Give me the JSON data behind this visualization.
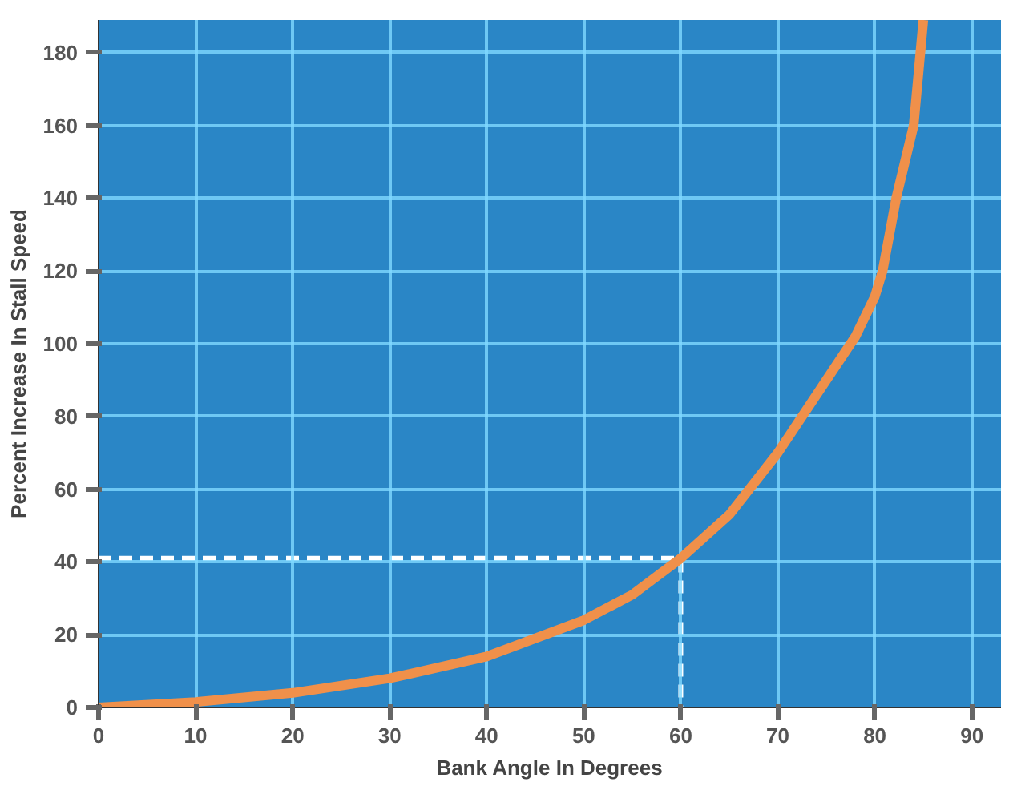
{
  "chart_data": {
    "type": "line",
    "xlabel": "Bank Angle In Degrees",
    "ylabel": "Percent Increase In Stall Speed",
    "xlim": [
      0,
      93
    ],
    "ylim": [
      0,
      189
    ],
    "xticks": [
      0,
      10,
      20,
      30,
      40,
      50,
      60,
      70,
      80,
      90
    ],
    "yticks": [
      0,
      20,
      40,
      60,
      80,
      100,
      120,
      140,
      160,
      180
    ],
    "grid": true,
    "series": [
      {
        "color": "#f0904a",
        "line_style": "solid",
        "x": [
          0,
          10,
          20,
          30,
          40,
          50,
          55,
          60,
          65,
          70,
          75,
          78,
          80,
          80.8,
          82.2,
          84,
          85
        ],
        "values": [
          0,
          1.5,
          4,
          8,
          14,
          24,
          31,
          41,
          53,
          70,
          90,
          102,
          113,
          120,
          140,
          160,
          189
        ]
      },
      {
        "color": "#ffffff",
        "line_style": "dashed",
        "x": [
          0,
          60,
          60
        ],
        "values": [
          41,
          41,
          0
        ]
      }
    ]
  }
}
